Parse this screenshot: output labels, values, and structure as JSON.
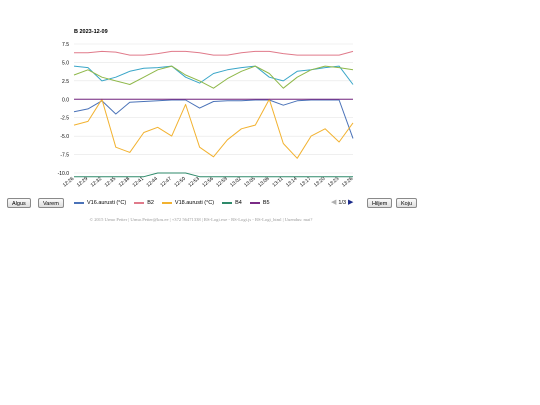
{
  "chart_data": {
    "type": "line",
    "title": "B 2023-12-09",
    "categories": [
      "12:26",
      "12:29",
      "12:32",
      "12:35",
      "12:38",
      "12:41",
      "12:44",
      "12:47",
      "12:50",
      "12:53",
      "12:56",
      "12:59",
      "13:02",
      "13:05",
      "13:08",
      "13:11",
      "13:14",
      "13:17",
      "13:20",
      "13:23",
      "13:26"
    ],
    "ylim": [
      -10,
      7.5
    ],
    "yticks": [
      "7.5",
      "5.0",
      "2.5",
      "0.0",
      "-2.5",
      "-5.0",
      "-7.5",
      "-10.0"
    ],
    "grid": true,
    "legend_position": "bottom",
    "series": [
      {
        "name": "V16.aurusti (°C)",
        "color": "#4a72b8",
        "values": [
          -1.7,
          -1.3,
          -0.2,
          -2.0,
          -0.4,
          -0.3,
          -0.2,
          -0.1,
          -0.1,
          -1.2,
          -0.3,
          -0.2,
          -0.2,
          -0.1,
          -0.1,
          -0.8,
          -0.2,
          -0.1,
          -0.1,
          -0.1,
          -5.3
        ]
      },
      {
        "name": "B2",
        "color": "#e07a8a",
        "values": [
          6.3,
          6.3,
          6.5,
          6.4,
          6.0,
          6.0,
          6.2,
          6.5,
          6.5,
          6.3,
          6.0,
          6.0,
          6.3,
          6.5,
          6.5,
          6.2,
          6.0,
          6.0,
          6.0,
          6.0,
          6.5
        ]
      },
      {
        "name": "V18.aurusti (°C)",
        "color": "#f2b230",
        "values": [
          -3.5,
          -3.0,
          0.0,
          -6.5,
          -7.2,
          -4.5,
          -3.8,
          -5.0,
          -0.7,
          -6.5,
          -7.8,
          -5.5,
          -4.0,
          -3.5,
          0.0,
          -6.0,
          -8.0,
          -5.0,
          -4.0,
          -5.8,
          -3.2
        ]
      },
      {
        "name": "B4",
        "color": "#2e8a6a",
        "values": [
          -10.5,
          -10.5,
          -10.5,
          -10.5,
          -10.5,
          -10.5,
          -10.0,
          -10.0,
          -10.0,
          -10.5,
          -10.5,
          -10.5,
          -10.5,
          -10.5,
          -10.5,
          -10.5,
          -10.5,
          -10.5,
          -10.5,
          -10.5,
          -10.5
        ]
      },
      {
        "name": "B5",
        "color": "#7a2b86",
        "values": [
          0.0,
          0.0,
          0.0,
          0.0,
          0.0,
          0.0,
          0.0,
          0.0,
          0.0,
          0.0,
          0.0,
          0.0,
          0.0,
          0.0,
          0.0,
          0.0,
          0.0,
          0.0,
          0.0,
          0.0,
          0.0
        ]
      },
      {
        "name": "",
        "color": "#3aa6c8",
        "values": [
          4.5,
          4.3,
          2.5,
          3.0,
          3.8,
          4.2,
          4.3,
          4.5,
          3.0,
          2.2,
          3.5,
          4.0,
          4.3,
          4.5,
          3.0,
          2.5,
          3.8,
          4.0,
          4.3,
          4.5,
          2.0
        ]
      },
      {
        "name": "",
        "color": "#8fb84a",
        "values": [
          3.3,
          4.0,
          3.0,
          2.5,
          2.0,
          3.0,
          4.0,
          4.5,
          3.3,
          2.5,
          1.5,
          2.8,
          3.8,
          4.5,
          3.5,
          1.5,
          3.0,
          4.0,
          4.5,
          4.3,
          4.0
        ]
      }
    ]
  },
  "buttons": {
    "first": "Algus",
    "prev": "Varem",
    "next": "Hiljem",
    "last": "Koju"
  },
  "pager": {
    "page": "1/3",
    "prev_icon": "triangle-left-icon",
    "next_icon": "triangle-right-icon"
  },
  "footer": "© 2015 Urmo Petter | Urmo.Petter@kru.ee | +372 56471338 | RS-Logi.exe - RS-Logi.js - RS-Logi_html | Uuendus: mai?"
}
